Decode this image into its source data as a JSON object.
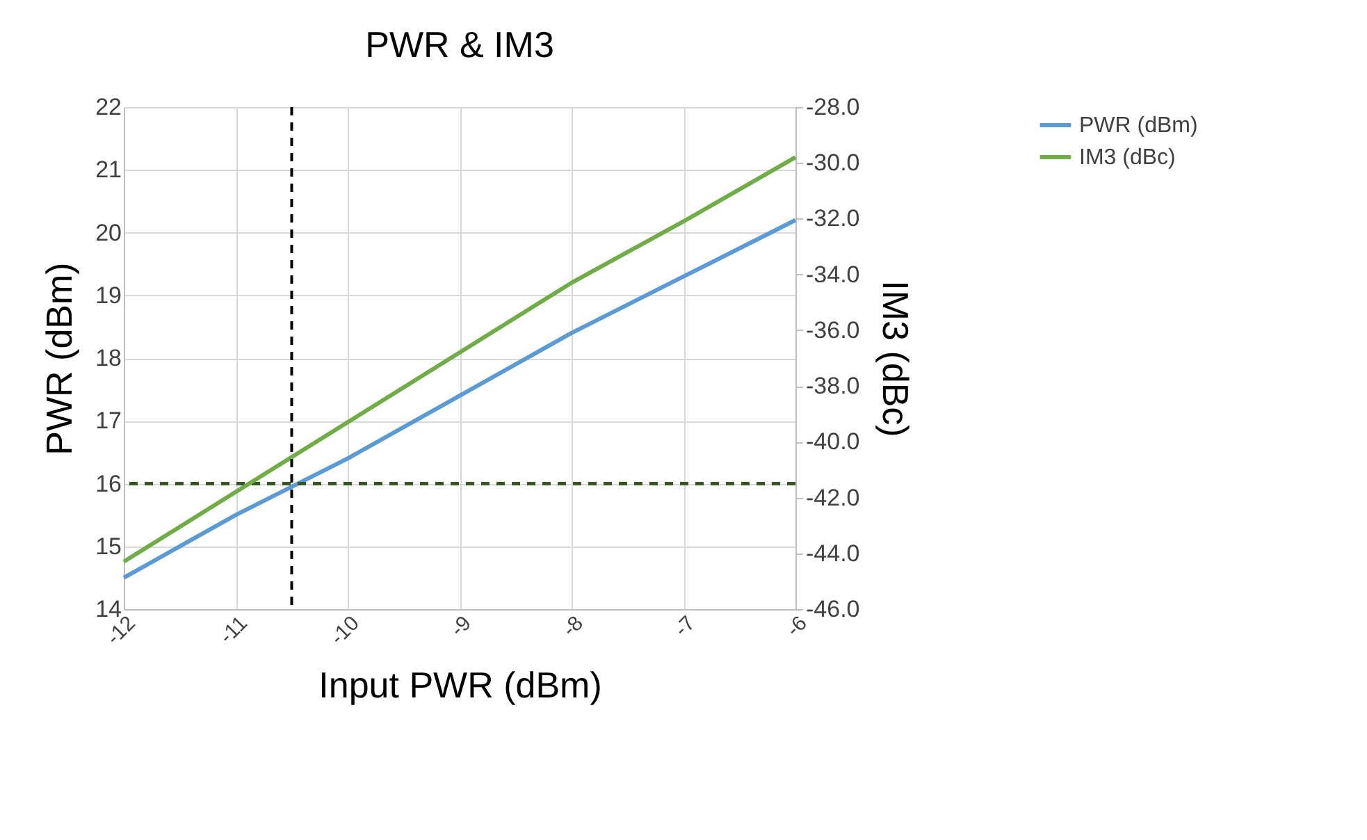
{
  "chart_data": {
    "type": "line",
    "title": "PWR & IM3",
    "xlabel": "Input PWR (dBm)",
    "ylabel": "PWR (dBm)",
    "y2label": "IM3  (dBc)",
    "x": [
      -12,
      -11,
      -10,
      -9,
      -8,
      -7,
      -6
    ],
    "series": [
      {
        "name": "PWR (dBm)",
        "color": "#5b9bd5",
        "values": [
          14.5,
          15.5,
          16.4,
          17.4,
          18.4,
          19.3,
          20.2
        ]
      },
      {
        "name": "IM3 (dBc)",
        "color": "#70ad47",
        "axis": "y2",
        "values": [
          -44.3,
          -41.8,
          -39.3,
          -36.8,
          -34.3,
          -32.1,
          -29.8
        ]
      }
    ],
    "xlim": [
      -12,
      -6
    ],
    "xticks": [
      -12,
      -11,
      -10,
      -9,
      -8,
      -7,
      -6
    ],
    "ylim": [
      14,
      22
    ],
    "yticks": [
      14,
      15,
      16,
      17,
      18,
      19,
      20,
      21,
      22
    ],
    "y2lim": [
      -46,
      -28
    ],
    "y2ticks": [
      {
        "value": -46,
        "label": "-46.0"
      },
      {
        "value": -44,
        "label": "-44.0"
      },
      {
        "value": -42,
        "label": "-42.0"
      },
      {
        "value": -40,
        "label": "-40.0"
      },
      {
        "value": -38,
        "label": "-38.0"
      },
      {
        "value": -36,
        "label": "-36.0"
      },
      {
        "value": -34,
        "label": "-34.0"
      },
      {
        "value": -32,
        "label": "-32.0"
      },
      {
        "value": -30,
        "label": "-30.0"
      },
      {
        "value": -28,
        "label": "-28.0"
      }
    ],
    "ref_lines": [
      {
        "axis": "x",
        "value": -10.5,
        "color": "#000000",
        "line_style": "dashed"
      },
      {
        "axis": "y",
        "value": 16,
        "color": "#375623",
        "line_style": "dashed"
      }
    ],
    "grid": true,
    "legend": "right",
    "line_style": "solid"
  }
}
